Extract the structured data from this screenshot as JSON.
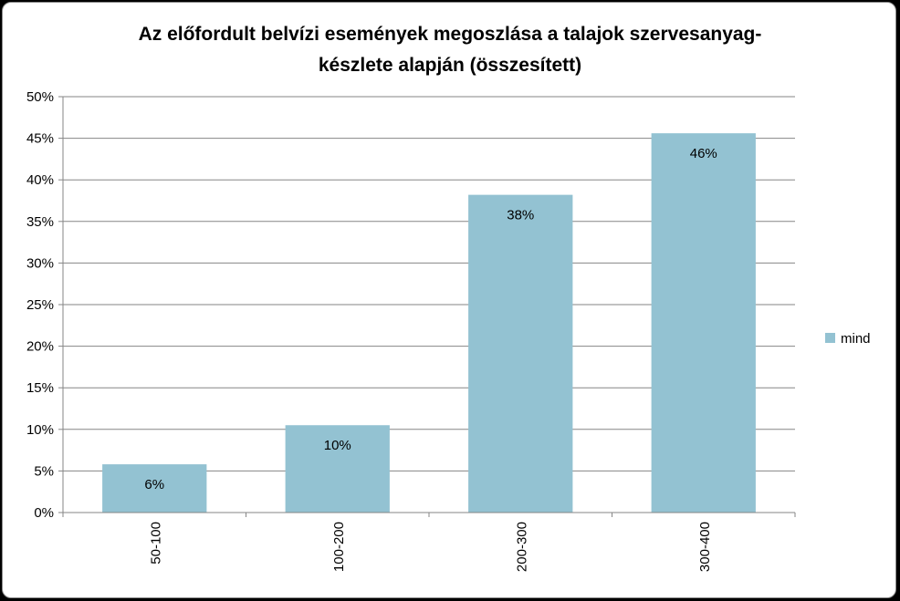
{
  "chart_data": {
    "type": "bar",
    "title": "Az előfordult belvízi események megoszlása a talajok szervesanyag-készlete alapján (összesített)",
    "title_lines": [
      "Az előfordult belvízi események megoszlása a talajok szervesanyag-",
      "készlete alapján (összesített)"
    ],
    "categories": [
      "50-100",
      "100-200",
      "200-300",
      "300-400"
    ],
    "series": [
      {
        "name": "mind",
        "values": [
          0.058,
          0.105,
          0.382,
          0.456
        ],
        "data_labels": [
          "6%",
          "10%",
          "38%",
          "46%"
        ],
        "color": "#93c2d2"
      }
    ],
    "ylim": [
      0,
      0.5
    ],
    "y_ticks": [
      0,
      0.05,
      0.1,
      0.15,
      0.2,
      0.25,
      0.3,
      0.35,
      0.4,
      0.45,
      0.5
    ],
    "y_tick_labels": [
      "0%",
      "5%",
      "10%",
      "15%",
      "20%",
      "25%",
      "30%",
      "35%",
      "40%",
      "45%",
      "50%"
    ],
    "grid": true,
    "legend": "right",
    "xlabel": "",
    "ylabel": ""
  }
}
